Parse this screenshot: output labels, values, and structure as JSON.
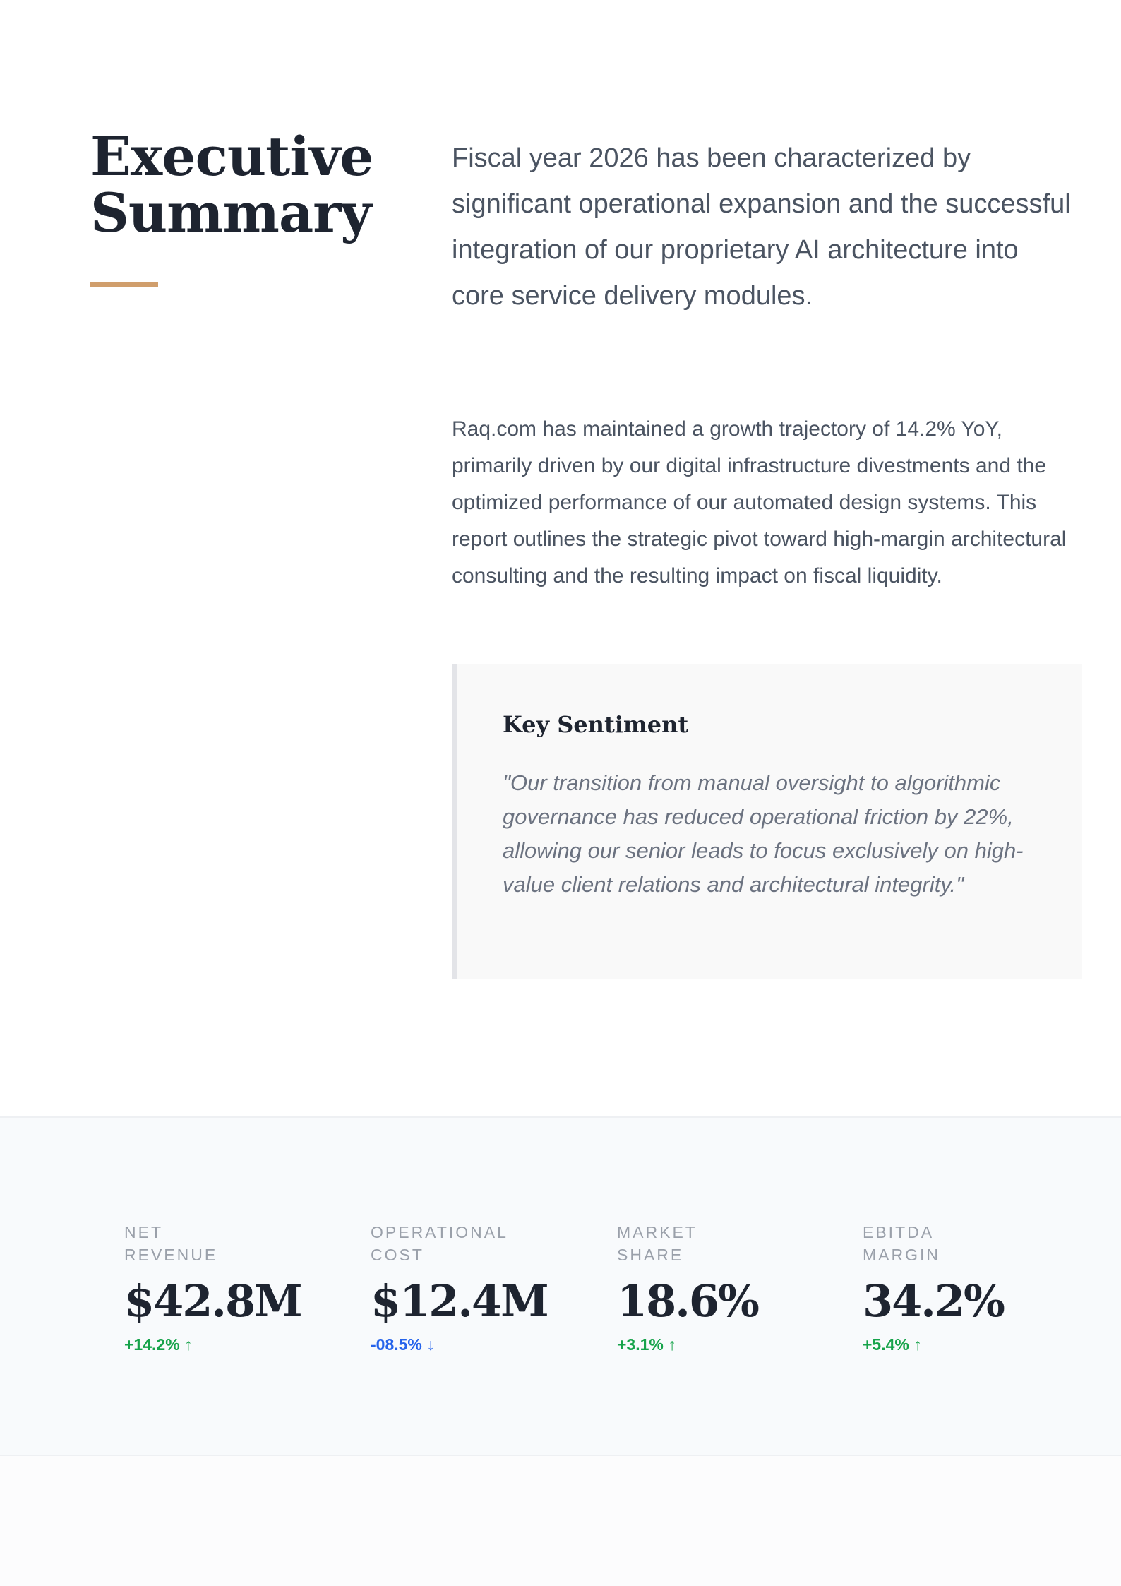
{
  "header": {
    "title_line1": "Executive",
    "title_line2": "Summary"
  },
  "colors": {
    "accent": "#d09e6c",
    "positive": "#16a34a",
    "negative": "#2563eb",
    "band_bg": "#f8fafc"
  },
  "lead": "Fiscal year 2026 has been characterized by significant operational expansion and the successful integration of our proprietary AI architecture into core service delivery modules.",
  "body": "Raq.com has maintained a growth trajectory of 14.2% YoY, primarily driven by our digital infrastructure divestments and the optimized performance of our automated design systems. This report outlines the strategic pivot toward high-margin architectural consulting and the resulting impact on fiscal liquidity.",
  "sentiment": {
    "title": "Key Sentiment",
    "quote": "\"Our transition from manual oversight to algorithmic governance has reduced operational friction by 22%, allowing our senior leads to focus exclusively on high-value client relations and architectural integrity.\""
  },
  "stats": [
    {
      "label_line1": "Net",
      "label_line2": "Revenue",
      "value": "$42.8M",
      "change": "+14.2% ↑",
      "trend": "up"
    },
    {
      "label_line1": "Operational",
      "label_line2": "Cost",
      "value": "$12.4M",
      "change": "-08.5% ↓",
      "trend": "down"
    },
    {
      "label_line1": "Market",
      "label_line2": "Share",
      "value": "18.6%",
      "change": "+3.1% ↑",
      "trend": "up"
    },
    {
      "label_line1": "EBITDA",
      "label_line2": "Margin",
      "value": "34.2%",
      "change": "+5.4% ↑",
      "trend": "up"
    }
  ]
}
